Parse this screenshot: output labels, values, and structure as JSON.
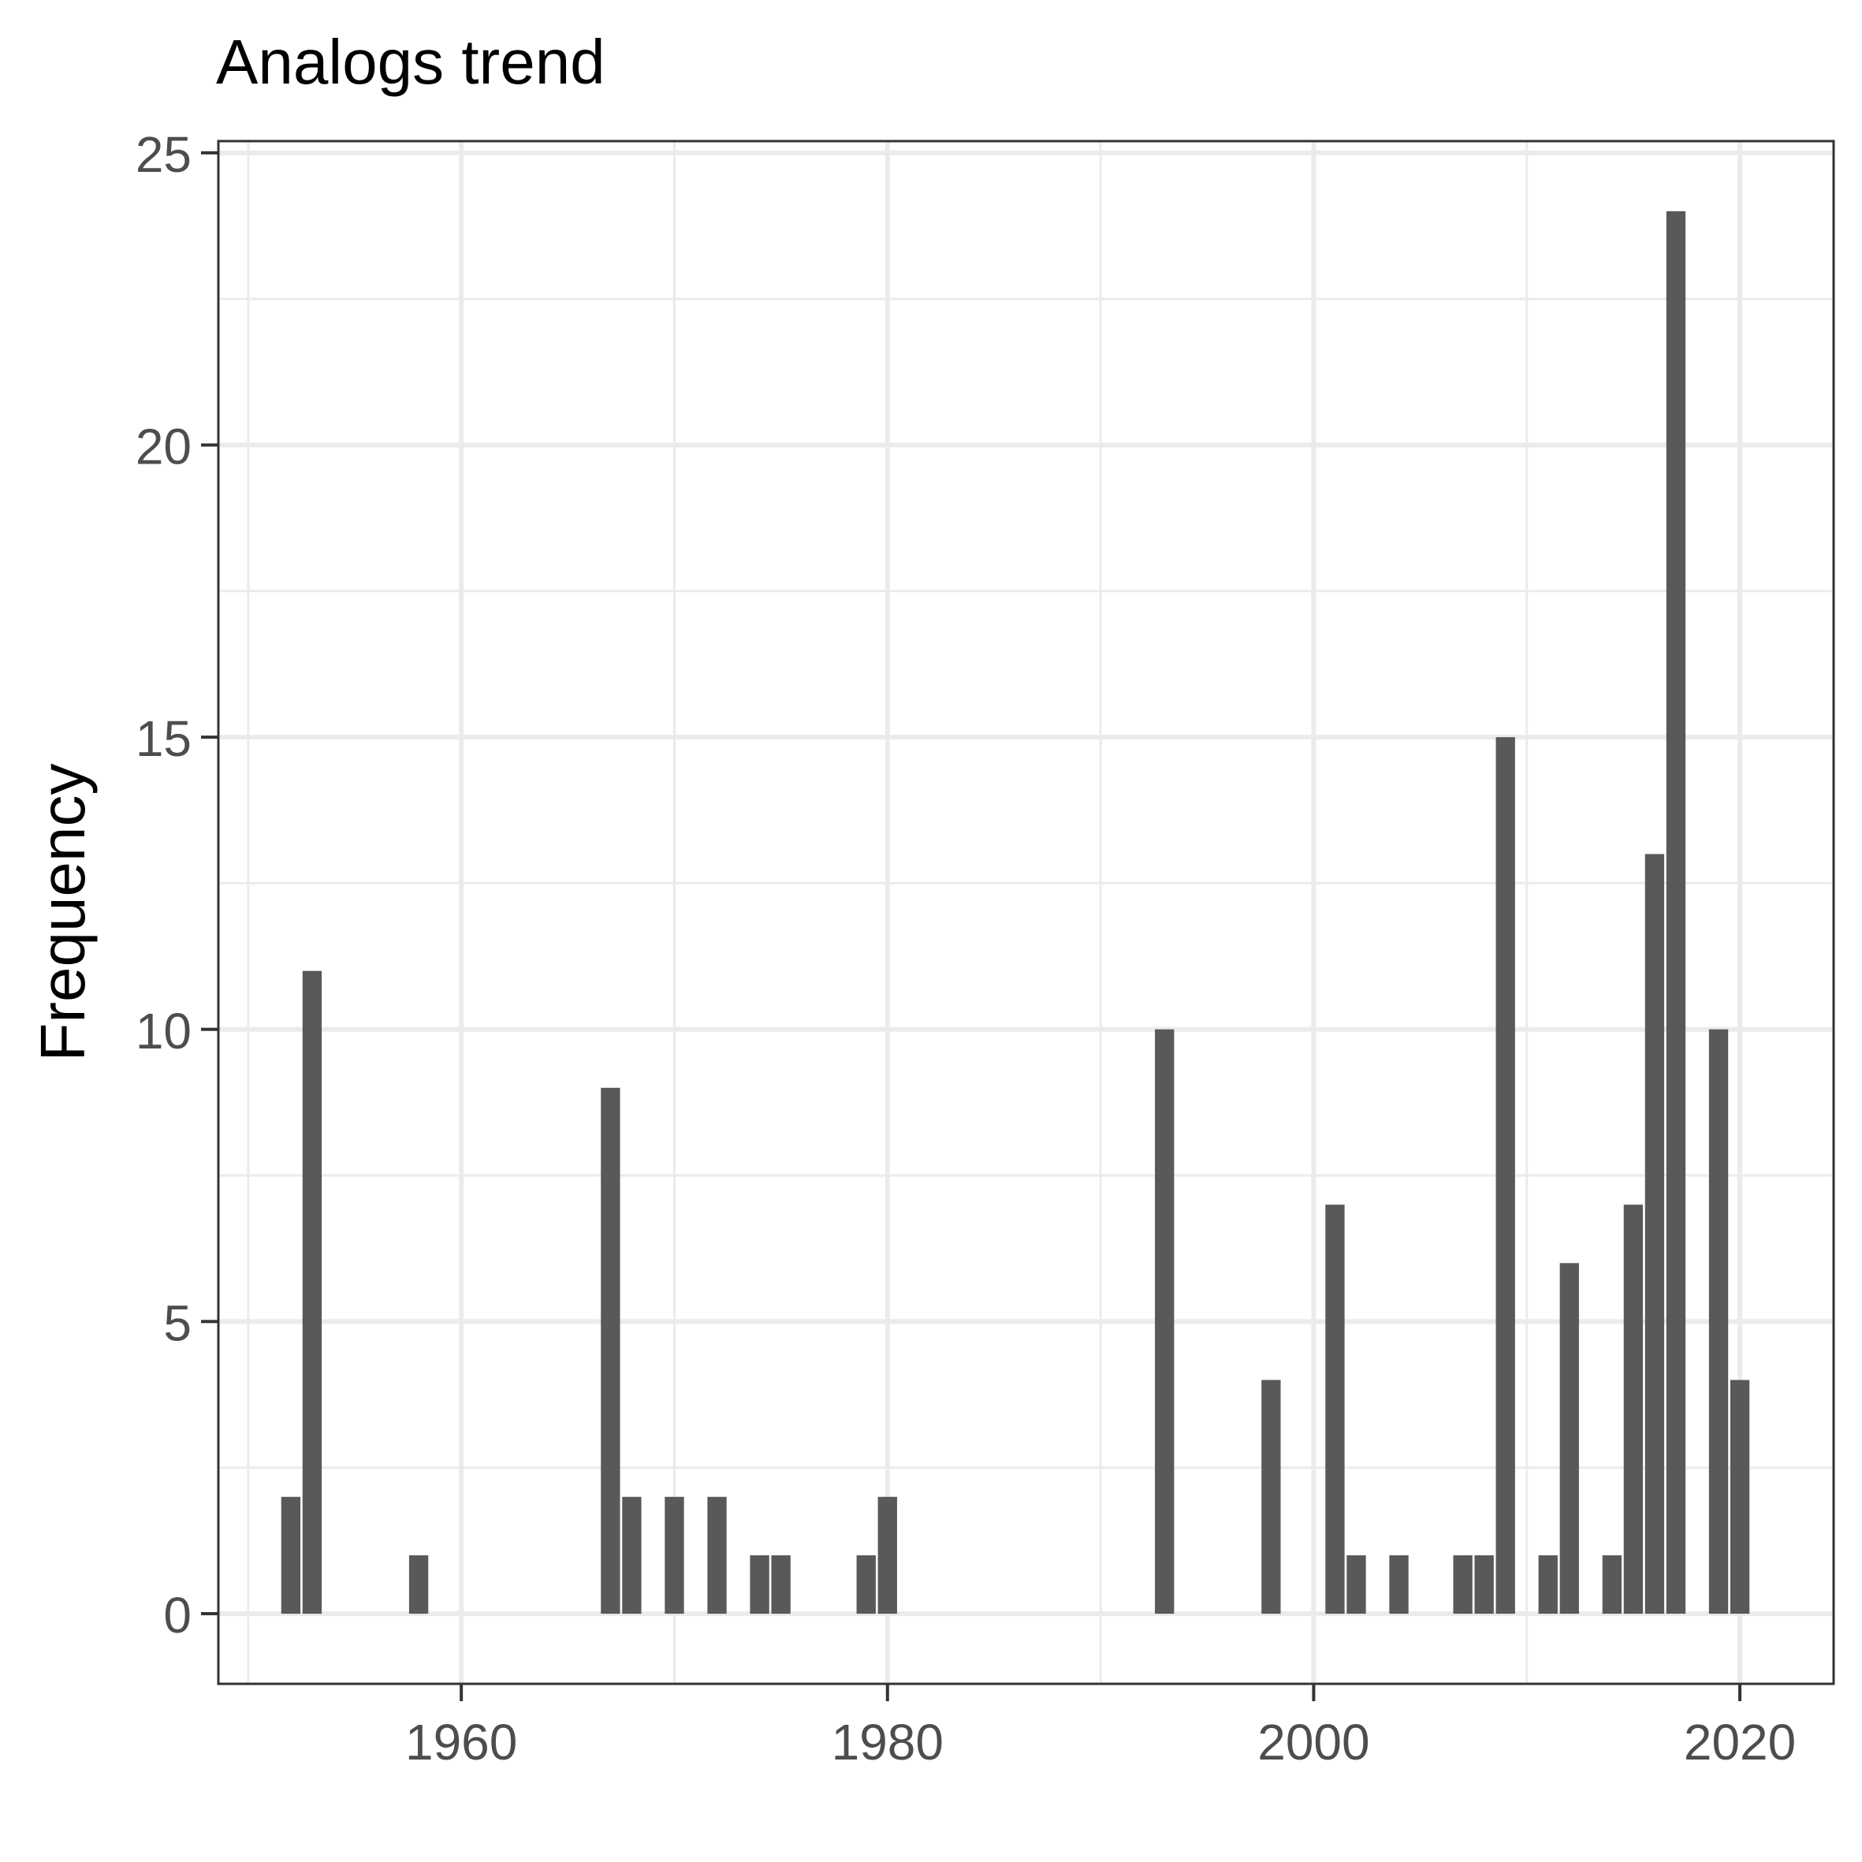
{
  "chart_data": {
    "type": "bar",
    "title": "Analogs trend",
    "xlabel": "",
    "ylabel": "Frequency",
    "x": [
      1952,
      1953,
      1958,
      1967,
      1968,
      1970,
      1972,
      1974,
      1975,
      1979,
      1980,
      1993,
      1998,
      2001,
      2002,
      2004,
      2007,
      2008,
      2009,
      2011,
      2012,
      2014,
      2015,
      2016,
      2017,
      2019,
      2020
    ],
    "values": [
      2,
      11,
      1,
      9,
      2,
      2,
      2,
      1,
      1,
      1,
      2,
      10,
      4,
      7,
      1,
      1,
      1,
      1,
      15,
      1,
      6,
      1,
      7,
      13,
      24,
      10,
      4
    ],
    "xlim": [
      1948.6,
      2024.4
    ],
    "ylim": [
      -1.2,
      25.2
    ],
    "x_ticks": [
      1960,
      1980,
      2000,
      2020
    ],
    "x_tick_labels": [
      "1960",
      "1980",
      "2000",
      "2020"
    ],
    "y_ticks": [
      0,
      5,
      10,
      15,
      20,
      25
    ],
    "y_tick_labels": [
      "0",
      "5",
      "10",
      "15",
      "20",
      "25"
    ],
    "grid": true,
    "bar_color": "#595959",
    "grid_color": "#ebebeb",
    "legend": "none"
  }
}
